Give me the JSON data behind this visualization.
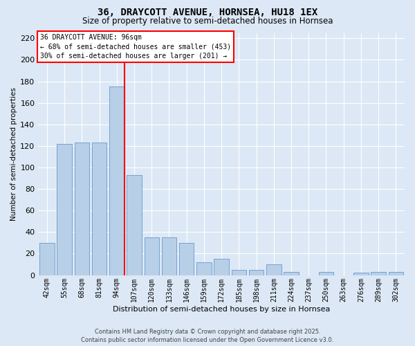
{
  "title1": "36, DRAYCOTT AVENUE, HORNSEA, HU18 1EX",
  "title2": "Size of property relative to semi-detached houses in Hornsea",
  "xlabel": "Distribution of semi-detached houses by size in Hornsea",
  "ylabel": "Number of semi-detached properties",
  "categories": [
    "42sqm",
    "55sqm",
    "68sqm",
    "81sqm",
    "94sqm",
    "107sqm",
    "120sqm",
    "133sqm",
    "146sqm",
    "159sqm",
    "172sqm",
    "185sqm",
    "198sqm",
    "211sqm",
    "224sqm",
    "237sqm",
    "250sqm",
    "263sqm",
    "276sqm",
    "289sqm",
    "302sqm"
  ],
  "values": [
    30,
    122,
    123,
    123,
    175,
    93,
    35,
    35,
    30,
    12,
    15,
    5,
    5,
    10,
    3,
    0,
    3,
    0,
    2,
    3,
    3
  ],
  "bar_color": "#b8cfe8",
  "bar_edge_color": "#6699cc",
  "annotation_title": "36 DRAYCOTT AVENUE: 96sqm",
  "annotation_line1": "← 68% of semi-detached houses are smaller (453)",
  "annotation_line2": "30% of semi-detached houses are larger (201) →",
  "ylim": [
    0,
    225
  ],
  "yticks": [
    0,
    20,
    40,
    60,
    80,
    100,
    120,
    140,
    160,
    180,
    200,
    220
  ],
  "vline_index": 4,
  "footer1": "Contains HM Land Registry data © Crown copyright and database right 2025.",
  "footer2": "Contains public sector information licensed under the Open Government Licence v3.0.",
  "bg_color": "#dce8f5",
  "grid_color": "#ffffff",
  "title1_fontsize": 10,
  "title2_fontsize": 8.5
}
